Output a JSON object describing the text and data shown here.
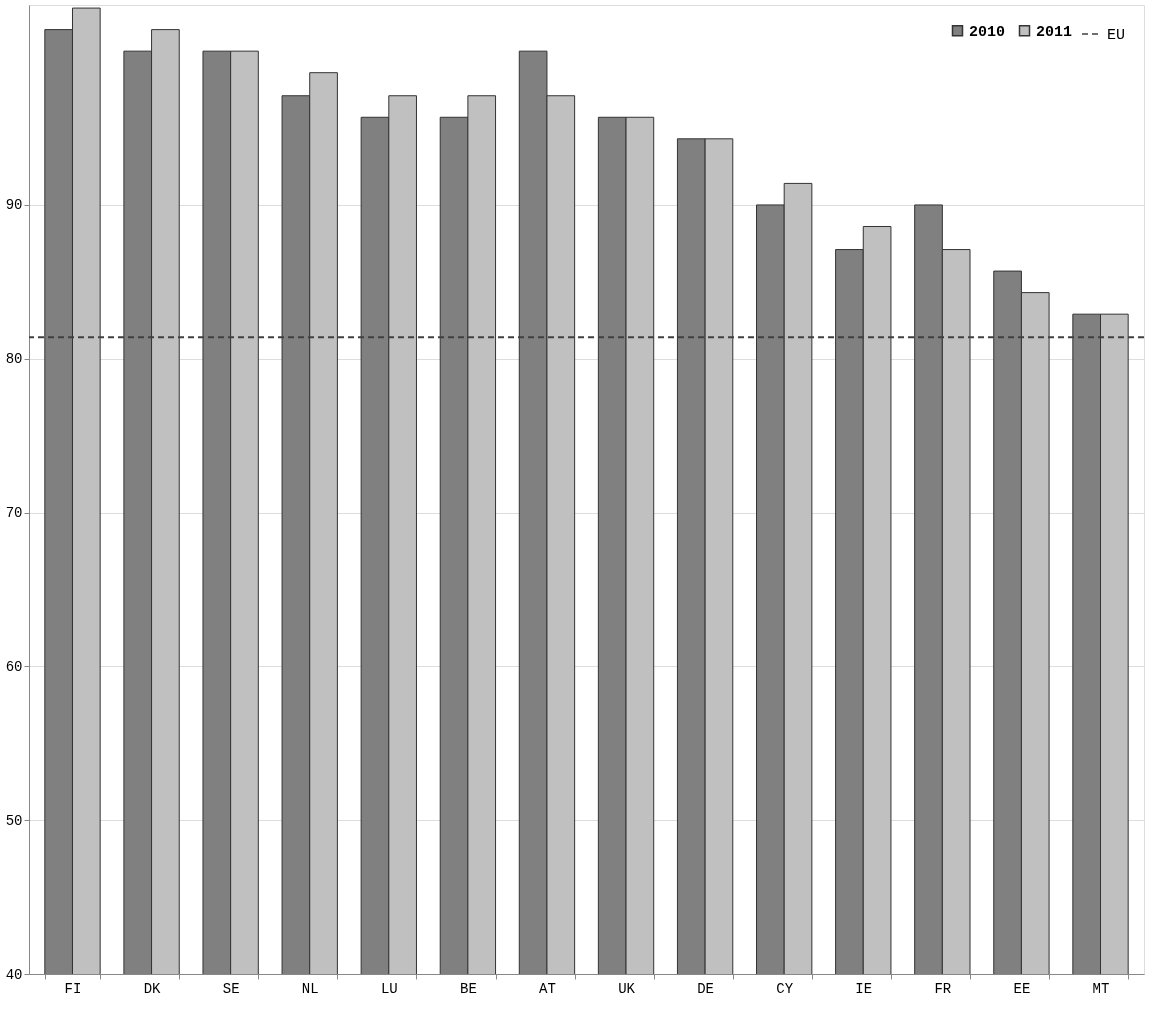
{
  "chart_data": {
    "type": "bar",
    "categories": [
      "FI",
      "DK",
      "SE",
      "NL",
      "LU",
      "BE",
      "AT",
      "UK",
      "DE",
      "CY",
      "IE",
      "FR",
      "EE",
      "MT"
    ],
    "series": [
      {
        "name": "2010",
        "color": "#808080",
        "values": [
          101.4,
          100.0,
          100.0,
          97.1,
          95.7,
          95.7,
          100.0,
          95.7,
          94.3,
          90.0,
          87.1,
          90.0,
          85.7,
          82.9
        ]
      },
      {
        "name": "2011",
        "color": "#c0c0c0",
        "values": [
          102.8,
          101.4,
          100.0,
          98.6,
          97.1,
          97.1,
          97.1,
          95.7,
          94.3,
          91.4,
          88.6,
          87.1,
          84.3,
          82.9
        ]
      }
    ],
    "ref_lines": [
      {
        "axis": "y",
        "value": 81.4,
        "label": "EU",
        "color": "#404040",
        "line_style": "dashed"
      }
    ],
    "ylim": [
      40,
      103
    ],
    "yticks": [
      40,
      50,
      60,
      70,
      80,
      90
    ],
    "grid": "y",
    "legend": "top right"
  }
}
